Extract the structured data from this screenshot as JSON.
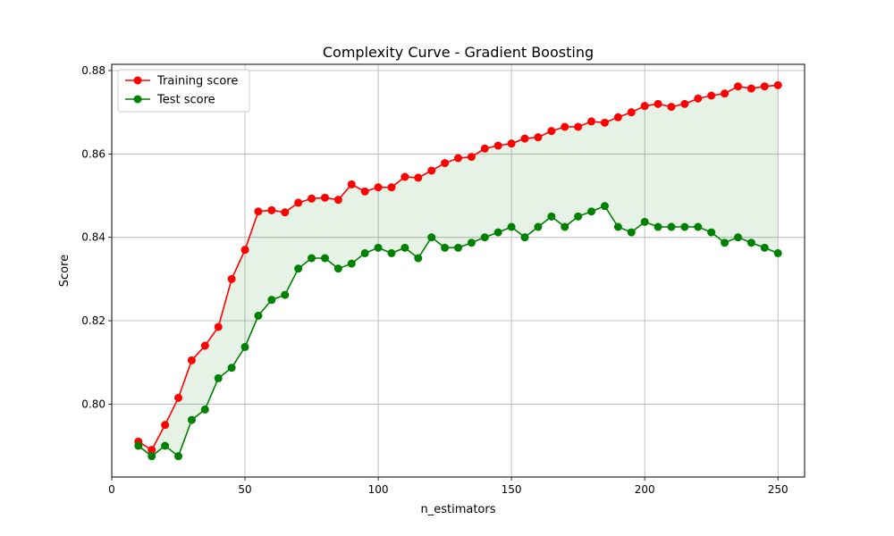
{
  "chart_data": {
    "type": "line",
    "title": "Complexity Curve - Gradient Boosting",
    "xlabel": "n_estimators",
    "ylabel": "Score",
    "xlim": [
      0,
      260
    ],
    "ylim": [
      0.7825,
      0.8815
    ],
    "xticks": [
      0,
      50,
      100,
      150,
      200,
      250
    ],
    "yticks": [
      0.8,
      0.82,
      0.84,
      0.86,
      0.88
    ],
    "xtick_labels": [
      "0",
      "50",
      "100",
      "150",
      "200",
      "250"
    ],
    "ytick_labels": [
      "0.80",
      "0.82",
      "0.84",
      "0.86",
      "0.88"
    ],
    "grid": true,
    "legend_position": "top-left",
    "fill_between": {
      "color": "#008000",
      "opacity": 0.1
    },
    "x": [
      10,
      15,
      20,
      25,
      30,
      35,
      40,
      45,
      50,
      55,
      60,
      65,
      70,
      75,
      80,
      85,
      90,
      95,
      100,
      105,
      110,
      115,
      120,
      125,
      130,
      135,
      140,
      145,
      150,
      155,
      160,
      165,
      170,
      175,
      180,
      185,
      190,
      195,
      200,
      205,
      210,
      215,
      220,
      225,
      230,
      235,
      240,
      245,
      250
    ],
    "series": [
      {
        "name": "Training score",
        "color": "#ff0000",
        "values": [
          0.791,
          0.789,
          0.795,
          0.8015,
          0.8105,
          0.814,
          0.8185,
          0.83,
          0.837,
          0.8462,
          0.8465,
          0.846,
          0.8483,
          0.8493,
          0.8495,
          0.849,
          0.8527,
          0.851,
          0.852,
          0.852,
          0.8545,
          0.8543,
          0.856,
          0.8578,
          0.859,
          0.8593,
          0.8613,
          0.862,
          0.8625,
          0.8637,
          0.864,
          0.8655,
          0.8665,
          0.8665,
          0.8678,
          0.8675,
          0.8688,
          0.87,
          0.8715,
          0.872,
          0.8713,
          0.872,
          0.8733,
          0.874,
          0.8745,
          0.8762,
          0.8757,
          0.8762,
          0.8765
        ]
      },
      {
        "name": "Test score",
        "color": "#008000",
        "values": [
          0.79,
          0.7875,
          0.79,
          0.7875,
          0.7962,
          0.7987,
          0.8062,
          0.8087,
          0.8137,
          0.8212,
          0.825,
          0.8262,
          0.8325,
          0.835,
          0.835,
          0.8325,
          0.8337,
          0.8362,
          0.8375,
          0.8362,
          0.8375,
          0.835,
          0.84,
          0.8375,
          0.8375,
          0.8387,
          0.84,
          0.8412,
          0.8425,
          0.84,
          0.8425,
          0.845,
          0.8425,
          0.845,
          0.8462,
          0.8475,
          0.8425,
          0.8412,
          0.8437,
          0.8425,
          0.8425,
          0.8425,
          0.8425,
          0.8412,
          0.8387,
          0.84,
          0.8387,
          0.8375,
          0.8362
        ]
      }
    ]
  }
}
